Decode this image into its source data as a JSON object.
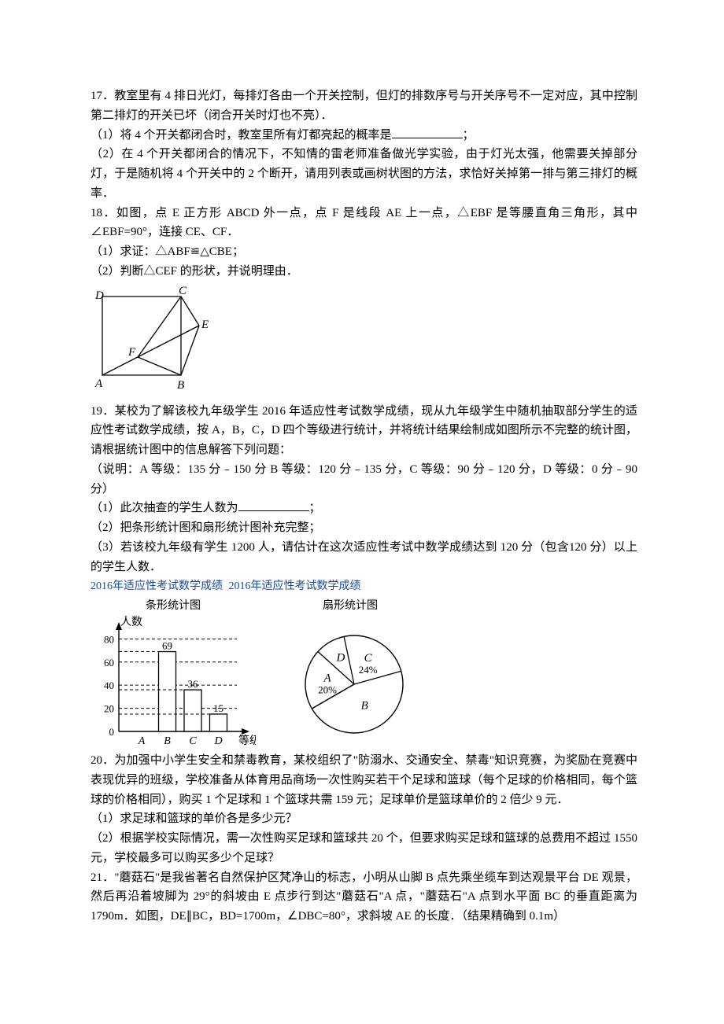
{
  "q17": {
    "stem": "17．教室里有 4 排日光灯，每排灯各由一个开关控制，但灯的排数序号与开关序号不一定对应，其中控制第二排灯的开关已坏（闭合开关时灯也不亮）．",
    "p1_a": "（1）将 4 个开关都闭合时，教室里所有灯都亮起的概率是",
    "p1_b": "；",
    "p2": "（2）在 4 个开关都闭合的情况下，不知情的雷老师准备做光学实验，由于灯光太强，他需要关掉部分灯，于是随机将 4 个开关中的 2 个断开，请用列表或画树状图的方法，求恰好关掉第一排与第三排灯的概率．"
  },
  "q18": {
    "stem": "18．如图，点 E 正方形 ABCD 外一点，点 F 是线段 AE 上一点，△EBF 是等腰直角三角形，其中∠EBF=90°，连接 CE、CF．",
    "p1": "（1）求证：△ABF≌△CBE；",
    "p2": "（2）判断△CEF 的形状，并说明理由．",
    "labels": {
      "A": "A",
      "B": "B",
      "C": "C",
      "D": "D",
      "E": "E",
      "F": "F"
    }
  },
  "q19": {
    "stem": "19．某校为了解该校九年级学生 2016 年适应性考试数学成绩，现从九年级学生中随机抽取部分学生的适应性考试数学成绩，按 A，B，C，D 四个等级进行统计，并将统计结果绘制成如图所示不完整的统计图，请根据统计图中的信息解答下列问题：",
    "note": "（说明：A 等级：135 分﹣150 分  B 等级：120 分﹣135 分，C 等级：90 分﹣120 分，D 等级：0 分﹣90 分）",
    "p1_a": "（1）此次抽查的学生人数为",
    "p1_b": "；",
    "p2": "（2）把条形统计图和扇形统计图补充完整；",
    "p3": "（3）若该校九年级有学生 1200 人，请估计在这次适应性考试中数学成绩达到 120 分（包含120 分）以上的学生人数．",
    "bar_title": "2016年适应性考试数学成绩",
    "bar_sub": "条形统计图",
    "pie_title": "2016年适应性考试数学成绩",
    "pie_sub": "扇形统计图",
    "axis_y_label": "人数",
    "axis_x_label": "等级",
    "bar": {
      "categories": [
        "A",
        "B",
        "C",
        "D"
      ],
      "values": [
        null,
        69,
        36,
        15
      ],
      "value_labels": [
        "",
        "69",
        "36",
        "15"
      ],
      "yticks": [
        0,
        20,
        40,
        60,
        80
      ],
      "ylim": [
        0,
        85
      ],
      "bar_fill": "#ffffff",
      "bar_stroke": "#000000",
      "dash_color": "#000000",
      "bg": "#ffffff"
    },
    "pie": {
      "slices": [
        {
          "label": "A",
          "pct": 20,
          "showPct": true
        },
        {
          "label": "D",
          "pct": 10,
          "showPct": false
        },
        {
          "label": "C",
          "pct": 24,
          "showPct": true
        },
        {
          "label": "B",
          "pct": 46,
          "showPct": false
        }
      ],
      "stroke": "#000000",
      "fill": "#ffffff"
    }
  },
  "q20": {
    "stem": "20．为加强中小学生安全和禁毒教育，某校组织了\"防溺水、交通安全、禁毒\"知识竞赛，为奖励在竞赛中表现优异的班级，学校准备从体育用品商场一次性购买若干个足球和篮球（每个足球的价格相同，每个篮球的价格相同），购买 1 个足球和 1 个篮球共需 159 元；足球单价是篮球单价的 2 倍少 9 元．",
    "p1": "（1）求足球和篮球的单价各是多少元？",
    "p2": "（2）根据学校实际情况，需一次性购买足球和篮球共 20 个，但要求购买足球和篮球的总费用不超过 1550 元，学校最多可以购买多少个足球？"
  },
  "q21": {
    "stem": "21．\"蘑菇石\"是我省著名自然保护区梵净山的标志，小明从山脚 B 点先乘坐缆车到达观景平台 DE 观景，然后再沿着坡脚为 29°的斜坡由 E 点步行到达\"蘑菇石\"A 点，\"蘑菇石\"A 点到水平面 BC 的垂直距离为 1790m．如图，DE∥BC，BD=1700m，∠DBC=80°，求斜坡 AE 的长度．（结果精确到 0.1m）"
  }
}
